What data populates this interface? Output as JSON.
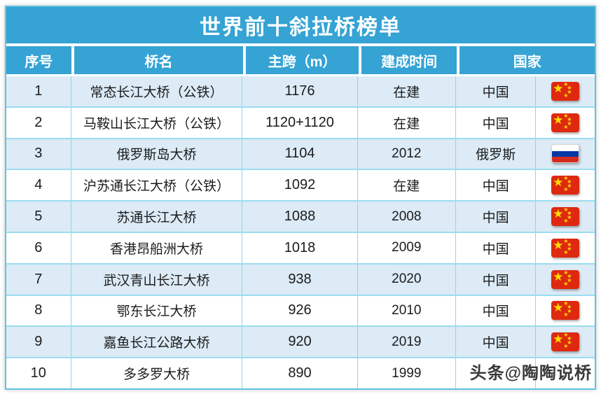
{
  "title": "世界前十斜拉桥榜单",
  "watermark": "头条@陶陶说桥",
  "table": {
    "headers": {
      "no": "序号",
      "name": "桥名",
      "span": "主跨（m）",
      "year": "建成时间",
      "country": "国家"
    },
    "rows": [
      {
        "no": "1",
        "name": "常态长江大桥（公铁）",
        "span": "1176",
        "year": "在建",
        "country": "中国",
        "flag": "china"
      },
      {
        "no": "2",
        "name": "马鞍山长江大桥（公铁）",
        "span": "1120+1120",
        "year": "在建",
        "country": "中国",
        "flag": "china"
      },
      {
        "no": "3",
        "name": "俄罗斯岛大桥",
        "span": "1104",
        "year": "2012",
        "country": "俄罗斯",
        "flag": "russia"
      },
      {
        "no": "4",
        "name": "沪苏通长江大桥（公铁）",
        "span": "1092",
        "year": "在建",
        "country": "中国",
        "flag": "china"
      },
      {
        "no": "5",
        "name": "苏通长江大桥",
        "span": "1088",
        "year": "2008",
        "country": "中国",
        "flag": "china"
      },
      {
        "no": "6",
        "name": "香港昂船洲大桥",
        "span": "1018",
        "year": "2009",
        "country": "中国",
        "flag": "china"
      },
      {
        "no": "7",
        "name": "武汉青山长江大桥",
        "span": "938",
        "year": "2020",
        "country": "中国",
        "flag": "china"
      },
      {
        "no": "8",
        "name": "鄂东长江大桥",
        "span": "926",
        "year": "2010",
        "country": "中国",
        "flag": "china"
      },
      {
        "no": "9",
        "name": "嘉鱼长江公路大桥",
        "span": "920",
        "year": "2019",
        "country": "中国",
        "flag": "china"
      },
      {
        "no": "10",
        "name": "多多罗大桥",
        "span": "890",
        "year": "1999",
        "country": "",
        "flag": "none"
      }
    ]
  },
  "chart_data": {
    "type": "table",
    "title": "世界前十斜拉桥榜单",
    "columns": [
      "序号",
      "桥名",
      "主跨（m）",
      "建成时间",
      "国家"
    ],
    "rows": [
      [
        "1",
        "常态长江大桥（公铁）",
        "1176",
        "在建",
        "中国"
      ],
      [
        "2",
        "马鞍山长江大桥（公铁）",
        "1120+1120",
        "在建",
        "中国"
      ],
      [
        "3",
        "俄罗斯岛大桥",
        "1104",
        "2012",
        "俄罗斯"
      ],
      [
        "4",
        "沪苏通长江大桥（公铁）",
        "1092",
        "在建",
        "中国"
      ],
      [
        "5",
        "苏通长江大桥",
        "1088",
        "2008",
        "中国"
      ],
      [
        "6",
        "香港昂船洲大桥",
        "1018",
        "2009",
        "中国"
      ],
      [
        "7",
        "武汉青山长江大桥",
        "938",
        "2020",
        "中国"
      ],
      [
        "8",
        "鄂东长江大桥",
        "926",
        "2010",
        "中国"
      ],
      [
        "9",
        "嘉鱼长江公路大桥",
        "920",
        "2019",
        "中国"
      ],
      [
        "10",
        "多多罗大桥",
        "890",
        "1999",
        ""
      ]
    ]
  },
  "colors": {
    "header_blue": "#35a3d4",
    "row_alt_blue": "#dcebf6",
    "grid_teal": "#8ed6ec",
    "china_flag_red": "#de2910",
    "china_flag_yellow": "#ffde00",
    "russia_blue": "#0039a6",
    "russia_red": "#d52b1e"
  }
}
